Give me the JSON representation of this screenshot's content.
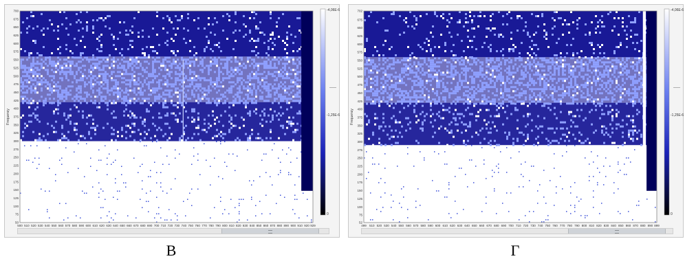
{
  "chart_data": [
    {
      "type": "heatmap",
      "caption": "В",
      "xlabel": "Time",
      "ylabel": "Frequency",
      "x_ticks": [
        "500",
        "510",
        "520",
        "530",
        "540",
        "550",
        "560",
        "570",
        "580",
        "590",
        "600",
        "610",
        "620",
        "630",
        "640",
        "650",
        "660",
        "670",
        "680",
        "690",
        "700",
        "710",
        "720",
        "730",
        "740",
        "750",
        "760",
        "770",
        "780",
        "790",
        "800",
        "810",
        "820",
        "830",
        "840",
        "850",
        "860",
        "870",
        "880",
        "890",
        "900",
        "910",
        "920",
        "929"
      ],
      "y_ticks": [
        "50",
        "75",
        "100",
        "125",
        "150",
        "175",
        "200",
        "225",
        "250",
        "275",
        "300",
        "325",
        "350",
        "375",
        "400",
        "425",
        "450",
        "475",
        "500",
        "525",
        "550",
        "575",
        "600",
        "625",
        "650",
        "675",
        "700"
      ],
      "xlim": [
        500,
        929
      ],
      "ylim": [
        50,
        700
      ],
      "colorbar": {
        "max_label": "-4,06E-6",
        "mid_label": "-1,25E-6",
        "min_label": "0"
      },
      "bands": [
        {
          "y_from": 50,
          "y_to": 300,
          "density": 0.04
        },
        {
          "y_from": 300,
          "y_to": 420,
          "density": 0.85
        },
        {
          "y_from": 420,
          "y_to": 560,
          "density": 0.55
        },
        {
          "y_from": 560,
          "y_to": 700,
          "density": 0.9
        }
      ],
      "vertical_line_x": 739,
      "dark_stripe_x": [
        912,
        929
      ],
      "colors": {
        "high": "#00008b",
        "mid": "#3a4fd8",
        "low": "#ffffff"
      }
    },
    {
      "type": "heatmap",
      "caption": "Г",
      "xlabel": "Time",
      "ylabel": "Frequency",
      "x_ticks": [
        "499",
        "510",
        "520",
        "530",
        "540",
        "550",
        "560",
        "570",
        "580",
        "590",
        "600",
        "610",
        "620",
        "630",
        "640",
        "650",
        "660",
        "670",
        "680",
        "690",
        "700",
        "710",
        "720",
        "730",
        "740",
        "750",
        "760",
        "770",
        "780",
        "790",
        "800",
        "810",
        "820",
        "830",
        "840",
        "850",
        "860",
        "870",
        "880",
        "890",
        "899"
      ],
      "y_ticks": [
        "52",
        "75",
        "100",
        "125",
        "150",
        "175",
        "200",
        "225",
        "250",
        "275",
        "300",
        "325",
        "350",
        "375",
        "400",
        "425",
        "450",
        "475",
        "500",
        "525",
        "550",
        "575",
        "600",
        "625",
        "650",
        "675",
        "702"
      ],
      "xlim": [
        499,
        899
      ],
      "ylim": [
        52,
        702
      ],
      "colorbar": {
        "max_label": "-4,06E-6",
        "mid_label": "-1,25E-6",
        "min_label": "0"
      },
      "bands": [
        {
          "y_from": 52,
          "y_to": 290,
          "density": 0.04
        },
        {
          "y_from": 290,
          "y_to": 420,
          "density": 0.85
        },
        {
          "y_from": 420,
          "y_to": 560,
          "density": 0.55
        },
        {
          "y_from": 560,
          "y_to": 702,
          "density": 0.9
        }
      ],
      "white_stripe_x": [
        880,
        884
      ],
      "dark_stripe_x": [
        885,
        899
      ],
      "colors": {
        "high": "#00008b",
        "mid": "#3a4fd8",
        "low": "#ffffff"
      }
    }
  ]
}
